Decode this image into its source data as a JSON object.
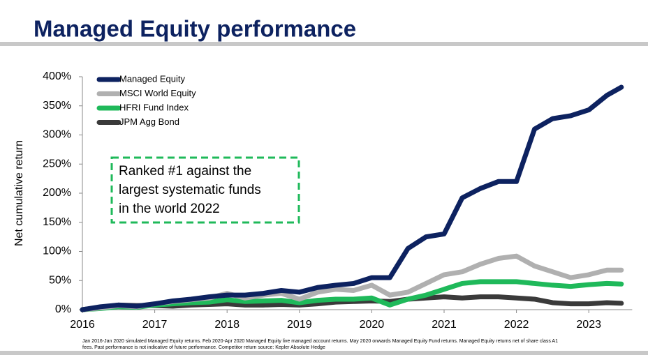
{
  "chart_data": {
    "type": "line",
    "title": "Managed Equity performance",
    "ylabel": "Net cumulative return",
    "annotation": [
      "Ranked #1 against the",
      "largest systematic funds",
      "in the world 2022"
    ],
    "footnote": [
      "Jan 2016-Jan 2020 simulated Managed Equity returns. Feb 2020-Apr 2020 Managed Equity live managed account returns. May 2020 onwards Managed Equity Fund returns. Managed Equity returns net of share class A1",
      "fees. Past performance is not indicative of future performance. Competitor return source: Kepler Absolute Hedge"
    ],
    "x": [
      2016,
      2016.25,
      2016.5,
      2016.75,
      2017,
      2017.25,
      2017.5,
      2017.75,
      2018,
      2018.25,
      2018.5,
      2018.75,
      2019,
      2019.25,
      2019.5,
      2019.75,
      2020,
      2020.25,
      2020.5,
      2020.75,
      2021,
      2021.25,
      2021.5,
      2021.75,
      2022,
      2022.25,
      2022.5,
      2022.75,
      2023,
      2023.25,
      2023.45
    ],
    "series": [
      {
        "name": "Managed Equity",
        "color": "#0d2260",
        "values": [
          0,
          5,
          8,
          6,
          10,
          15,
          18,
          22,
          25,
          25,
          28,
          33,
          30,
          38,
          42,
          45,
          55,
          55,
          105,
          125,
          130,
          192,
          208,
          220,
          220,
          310,
          328,
          333,
          343,
          368,
          382
        ]
      },
      {
        "name": "MSCI World Equity",
        "color": "#b0b0b0",
        "values": [
          0,
          3,
          7,
          5,
          10,
          14,
          17,
          20,
          28,
          20,
          25,
          28,
          18,
          30,
          35,
          33,
          42,
          25,
          30,
          45,
          60,
          65,
          78,
          88,
          92,
          75,
          65,
          55,
          60,
          68,
          68
        ]
      },
      {
        "name": "HFRI Fund Index",
        "color": "#1fb95a",
        "values": [
          0,
          2,
          5,
          4,
          8,
          10,
          12,
          13,
          17,
          14,
          15,
          16,
          12,
          16,
          18,
          18,
          20,
          8,
          18,
          25,
          35,
          45,
          48,
          48,
          48,
          45,
          42,
          40,
          43,
          45,
          44
        ]
      },
      {
        "name": "JPM Agg Bond",
        "color": "#3a3a3a",
        "values": [
          0,
          4,
          8,
          7,
          7,
          6,
          8,
          9,
          10,
          8,
          8,
          9,
          8,
          10,
          13,
          14,
          15,
          14,
          18,
          20,
          22,
          20,
          22,
          22,
          20,
          18,
          12,
          10,
          10,
          12,
          11
        ]
      }
    ],
    "xlim": [
      2016,
      2023.6
    ],
    "xticks": [
      2016,
      2017,
      2018,
      2019,
      2020,
      2021,
      2022,
      2023
    ],
    "ylim": [
      0,
      400
    ],
    "yticks": [
      {
        "value": 0,
        "label": "0%"
      },
      {
        "value": 50,
        "label": "50%"
      },
      {
        "value": 100,
        "label": "100%"
      },
      {
        "value": 150,
        "label": "150%"
      },
      {
        "value": 200,
        "label": "200%"
      },
      {
        "value": 250,
        "label": "250%"
      },
      {
        "value": 300,
        "label": "300%"
      },
      {
        "value": 350,
        "label": "350%"
      },
      {
        "value": 400,
        "label": "400%"
      }
    ],
    "legend": "top-left"
  }
}
